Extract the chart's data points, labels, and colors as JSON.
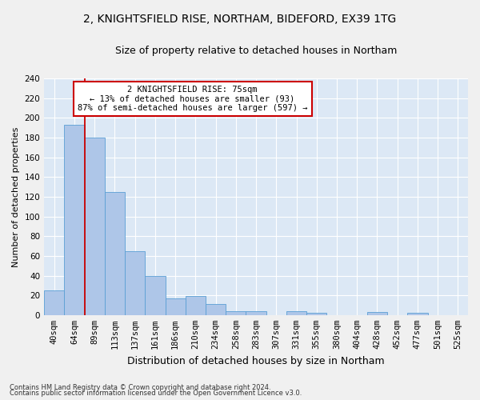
{
  "title1": "2, KNIGHTSFIELD RISE, NORTHAM, BIDEFORD, EX39 1TG",
  "title2": "Size of property relative to detached houses in Northam",
  "xlabel": "Distribution of detached houses by size in Northam",
  "ylabel": "Number of detached properties",
  "categories": [
    "40sqm",
    "64sqm",
    "89sqm",
    "113sqm",
    "137sqm",
    "161sqm",
    "186sqm",
    "210sqm",
    "234sqm",
    "258sqm",
    "283sqm",
    "307sqm",
    "331sqm",
    "355sqm",
    "380sqm",
    "404sqm",
    "428sqm",
    "452sqm",
    "477sqm",
    "501sqm",
    "525sqm"
  ],
  "values": [
    25,
    193,
    180,
    125,
    65,
    40,
    17,
    19,
    11,
    4,
    4,
    0,
    4,
    2,
    0,
    0,
    3,
    0,
    2,
    0,
    0
  ],
  "bar_color": "#aec6e8",
  "bar_edge_color": "#5a9fd4",
  "property_line_x": 1.5,
  "annotation_text": "2 KNIGHTSFIELD RISE: 75sqm\n← 13% of detached houses are smaller (93)\n87% of semi-detached houses are larger (597) →",
  "annotation_box_color": "#ffffff",
  "annotation_box_edge_color": "#cc0000",
  "vline_color": "#cc0000",
  "footer1": "Contains HM Land Registry data © Crown copyright and database right 2024.",
  "footer2": "Contains public sector information licensed under the Open Government Licence v3.0.",
  "ylim": [
    0,
    240
  ],
  "yticks": [
    0,
    20,
    40,
    60,
    80,
    100,
    120,
    140,
    160,
    180,
    200,
    220,
    240
  ],
  "background_color": "#dce8f5",
  "grid_color": "#ffffff",
  "fig_background": "#f0f0f0",
  "title_fontsize": 10,
  "subtitle_fontsize": 9,
  "xlabel_fontsize": 9,
  "ylabel_fontsize": 8,
  "tick_fontsize": 7.5,
  "annotation_fontsize": 7.5
}
